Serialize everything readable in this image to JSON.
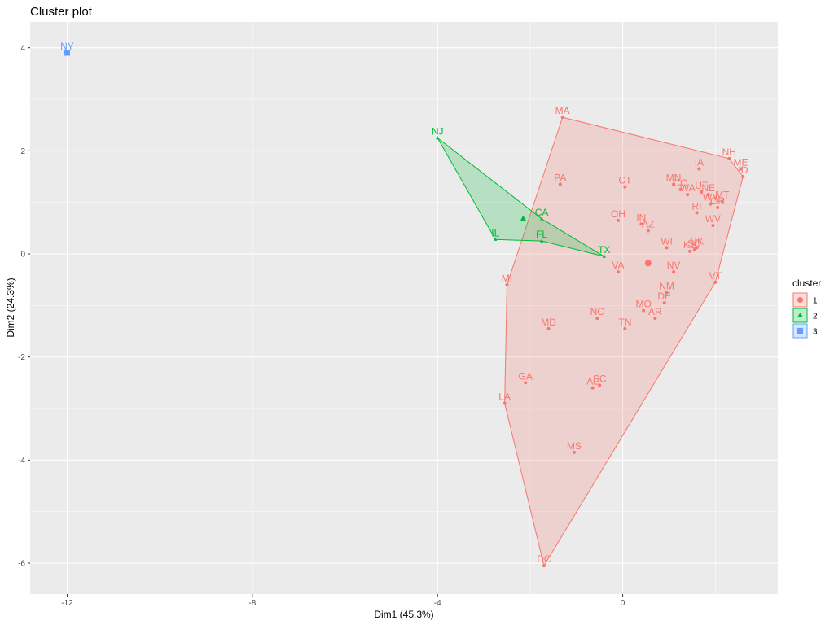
{
  "chart_data": {
    "type": "scatter",
    "title": "Cluster plot",
    "xlabel": "Dim1 (45.3%)",
    "ylabel": "Dim2 (24.3%)",
    "xlim": [
      -12.8,
      3.35
    ],
    "ylim": [
      -6.6,
      4.5
    ],
    "xticks": [
      -12,
      -8,
      -4,
      0
    ],
    "yticks": [
      -6,
      -4,
      -2,
      0,
      2,
      4
    ],
    "grid": true,
    "legend": {
      "title": "cluster",
      "placement": "right",
      "entries": [
        {
          "label": "1",
          "shape": "circle",
          "color": "#F8766D"
        },
        {
          "label": "2",
          "shape": "triangle",
          "color": "#00BA38"
        },
        {
          "label": "3",
          "shape": "square",
          "color": "#619CFF"
        }
      ]
    },
    "colors": {
      "1": "#F8766D",
      "2": "#00BA38",
      "3": "#619CFF",
      "panel": "#EBEBEB",
      "grid": "#FFFFFF"
    },
    "series": [
      {
        "name": "1",
        "points": [
          {
            "label": "MA",
            "x": -1.3,
            "y": 2.65
          },
          {
            "label": "NH",
            "x": 2.3,
            "y": 1.85
          },
          {
            "label": "ME",
            "x": 2.55,
            "y": 1.65
          },
          {
            "label": "ID",
            "x": 2.6,
            "y": 1.5
          },
          {
            "label": "IA",
            "x": 1.65,
            "y": 1.65
          },
          {
            "label": "PA",
            "x": -1.35,
            "y": 1.35
          },
          {
            "label": "CT",
            "x": 0.05,
            "y": 1.3
          },
          {
            "label": "MN",
            "x": 1.1,
            "y": 1.35
          },
          {
            "label": "CO",
            "x": 1.25,
            "y": 1.25
          },
          {
            "label": "WA",
            "x": 1.4,
            "y": 1.15
          },
          {
            "label": "UT",
            "x": 1.7,
            "y": 1.2
          },
          {
            "label": "NE",
            "x": 1.85,
            "y": 1.15
          },
          {
            "label": "WY",
            "x": 1.9,
            "y": 0.97
          },
          {
            "label": "MT",
            "x": 2.15,
            "y": 1.02
          },
          {
            "label": "RI",
            "x": 1.6,
            "y": 0.8
          },
          {
            "label": "OR",
            "x": 2.05,
            "y": 0.9
          },
          {
            "label": "OH",
            "x": -0.1,
            "y": 0.65
          },
          {
            "label": "IN",
            "x": 0.4,
            "y": 0.58
          },
          {
            "label": "AZ",
            "x": 0.55,
            "y": 0.45
          },
          {
            "label": "WV",
            "x": 1.95,
            "y": 0.55
          },
          {
            "label": "WI",
            "x": 0.95,
            "y": 0.12
          },
          {
            "label": "OK",
            "x": 1.6,
            "y": 0.12
          },
          {
            "label": "KS",
            "x": 1.45,
            "y": 0.05
          },
          {
            "label": "SD",
            "x": 1.55,
            "y": 0.08
          },
          {
            "label": "NV",
            "x": 1.1,
            "y": -0.35
          },
          {
            "label": "VA",
            "x": -0.1,
            "y": -0.35
          },
          {
            "label": "VT",
            "x": 2.0,
            "y": -0.55
          },
          {
            "label": "MI",
            "x": -2.5,
            "y": -0.6
          },
          {
            "label": "NM",
            "x": 0.95,
            "y": -0.75
          },
          {
            "label": "DE",
            "x": 0.9,
            "y": -0.95
          },
          {
            "label": "MO",
            "x": 0.45,
            "y": -1.1
          },
          {
            "label": "AR",
            "x": 0.7,
            "y": -1.25
          },
          {
            "label": "NC",
            "x": -0.55,
            "y": -1.25
          },
          {
            "label": "TN",
            "x": 0.05,
            "y": -1.45
          },
          {
            "label": "MD",
            "x": -1.6,
            "y": -1.45
          },
          {
            "label": "GA",
            "x": -2.1,
            "y": -2.5
          },
          {
            "label": "AL",
            "x": -0.65,
            "y": -2.6
          },
          {
            "label": "SC",
            "x": -0.5,
            "y": -2.55
          },
          {
            "label": "LA",
            "x": -2.55,
            "y": -2.9
          },
          {
            "label": "MS",
            "x": -1.05,
            "y": -3.85
          },
          {
            "label": "DC",
            "x": -1.7,
            "y": -6.05
          }
        ],
        "hull": [
          "MA",
          "NH",
          "ID",
          "VT",
          "DC",
          "LA",
          "MI"
        ],
        "center": {
          "x": 0.55,
          "y": -0.18
        }
      },
      {
        "name": "2",
        "points": [
          {
            "label": "NJ",
            "x": -4.0,
            "y": 2.25
          },
          {
            "label": "CA",
            "x": -1.75,
            "y": 0.68
          },
          {
            "label": "IL",
            "x": -2.75,
            "y": 0.28
          },
          {
            "label": "FL",
            "x": -1.75,
            "y": 0.25
          },
          {
            "label": "TX",
            "x": -0.4,
            "y": -0.05
          }
        ],
        "hull": [
          "NJ",
          "CA",
          "TX",
          "FL",
          "IL"
        ],
        "center": {
          "x": -2.15,
          "y": 0.68
        }
      },
      {
        "name": "3",
        "points": [
          {
            "label": "NY",
            "x": -12.0,
            "y": 3.9
          }
        ],
        "hull": [],
        "center": {
          "x": -12.0,
          "y": 3.9
        }
      }
    ]
  }
}
